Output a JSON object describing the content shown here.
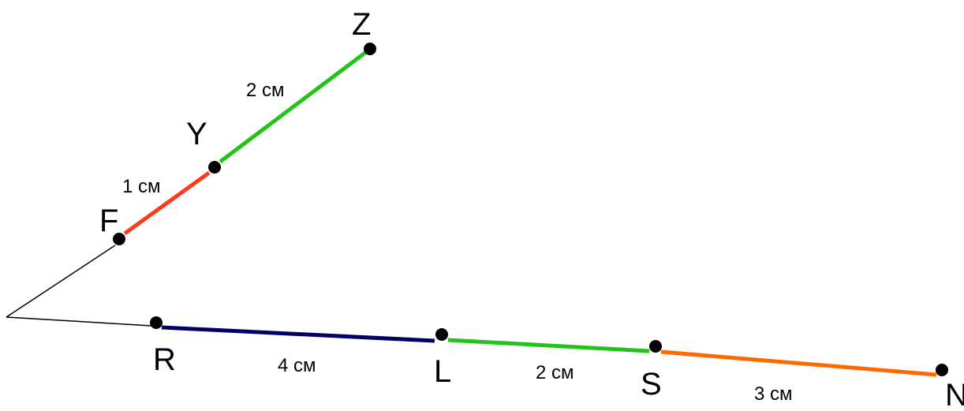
{
  "points": {
    "Z": "Z",
    "Y": "Y",
    "F": "F",
    "R": "R",
    "L": "L",
    "S": "S",
    "N": "N"
  },
  "segments": {
    "FY": {
      "length": "1 см",
      "color": "#ff3a1a"
    },
    "YZ": {
      "length": "2 см",
      "color": "#22c41a"
    },
    "RL": {
      "length": "4 см",
      "color": "#000066"
    },
    "LS": {
      "length": "2 см",
      "color": "#22c41a"
    },
    "SN": {
      "length": "3 см",
      "color": "#ff6a00"
    }
  },
  "ray_color": "#000000",
  "point_color": "#000000"
}
